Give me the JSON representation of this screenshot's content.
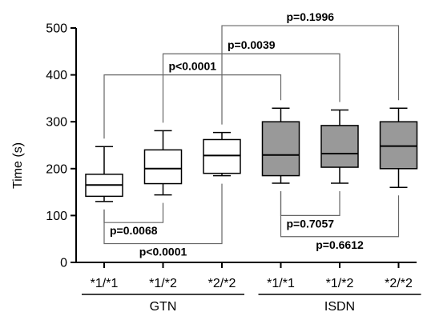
{
  "chart_data": {
    "type": "boxplot",
    "ylabel": "Time (s)",
    "ylim": [
      0,
      500
    ],
    "yticks": [
      0,
      100,
      200,
      300,
      400,
      500
    ],
    "categories": [
      "*1/*1",
      "*1/*2",
      "*2/*2",
      "*1/*1",
      "*1/*2",
      "*2/*2"
    ],
    "groups": [
      {
        "label": "GTN",
        "members": [
          0,
          1,
          2
        ]
      },
      {
        "label": "ISDN",
        "members": [
          3,
          4,
          5
        ]
      }
    ],
    "boxes": [
      {
        "min": 130,
        "q1": 141,
        "median": 165,
        "q3": 188,
        "max": 247,
        "fill": "#ffffff"
      },
      {
        "min": 144,
        "q1": 168,
        "median": 200,
        "q3": 240,
        "max": 281,
        "fill": "#ffffff"
      },
      {
        "min": 185,
        "q1": 190,
        "median": 228,
        "q3": 262,
        "max": 277,
        "fill": "#ffffff"
      },
      {
        "min": 169,
        "q1": 185,
        "median": 229,
        "q3": 300,
        "max": 329,
        "fill": "#999999"
      },
      {
        "min": 169,
        "q1": 203,
        "median": 232,
        "q3": 292,
        "max": 325,
        "fill": "#999999"
      },
      {
        "min": 160,
        "q1": 200,
        "median": 248,
        "q3": 300,
        "max": 329,
        "fill": "#999999"
      }
    ],
    "comparisons": [
      {
        "from": 0,
        "to": 3,
        "label": "p<0.0001",
        "position": "above",
        "level": 400
      },
      {
        "from": 1,
        "to": 4,
        "label": "p=0.0039",
        "position": "above",
        "level": 445
      },
      {
        "from": 2,
        "to": 5,
        "label": "p=0.1996",
        "position": "above",
        "level": 505
      },
      {
        "from": 0,
        "to": 1,
        "label": "p=0.0068",
        "position": "below",
        "level": 85
      },
      {
        "from": 0,
        "to": 2,
        "label": "p<0.0001",
        "position": "below",
        "level": 40
      },
      {
        "from": 3,
        "to": 4,
        "label": "p=0.7057",
        "position": "below",
        "level": 100
      },
      {
        "from": 3,
        "to": 5,
        "label": "p=0.6612",
        "position": "below",
        "level": 55
      }
    ]
  }
}
